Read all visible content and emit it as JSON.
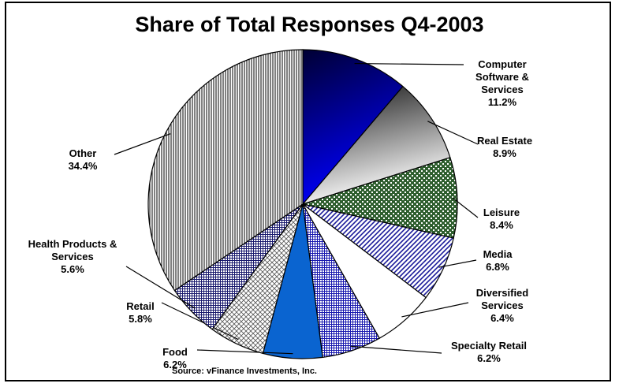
{
  "chart_data": {
    "type": "pie",
    "title": "Share of Total Responses Q4-2003",
    "source": "Source: vFinance Investments, Inc.",
    "categories": [
      "Computer Software & Services",
      "Real Estate",
      "Leisure",
      "Media",
      "Diversified Services",
      "Specialty Retail",
      "Food",
      "Retail",
      "Health Products & Services",
      "Other"
    ],
    "values": [
      11.2,
      8.9,
      8.4,
      6.8,
      6.4,
      6.2,
      6.2,
      5.8,
      5.6,
      34.4
    ],
    "value_labels": [
      "11.2%",
      "8.9%",
      "8.4%",
      "6.8%",
      "6.4%",
      "6.2%",
      "6.2%",
      "5.8%",
      "5.6%",
      "34.4%"
    ],
    "colors": [
      "#0000ff",
      "#333333",
      "#2e5e2e",
      "#1a1a9a",
      "#ffffff",
      "#1a1ab0",
      "#0a64d0",
      "#555555",
      "#1a1a6e",
      "#000000"
    ],
    "fills": [
      "gradient",
      "gradient",
      "crosshatch",
      "diagonal",
      "solid",
      "grid",
      "solid",
      "diamond",
      "grid",
      "vertical"
    ]
  }
}
